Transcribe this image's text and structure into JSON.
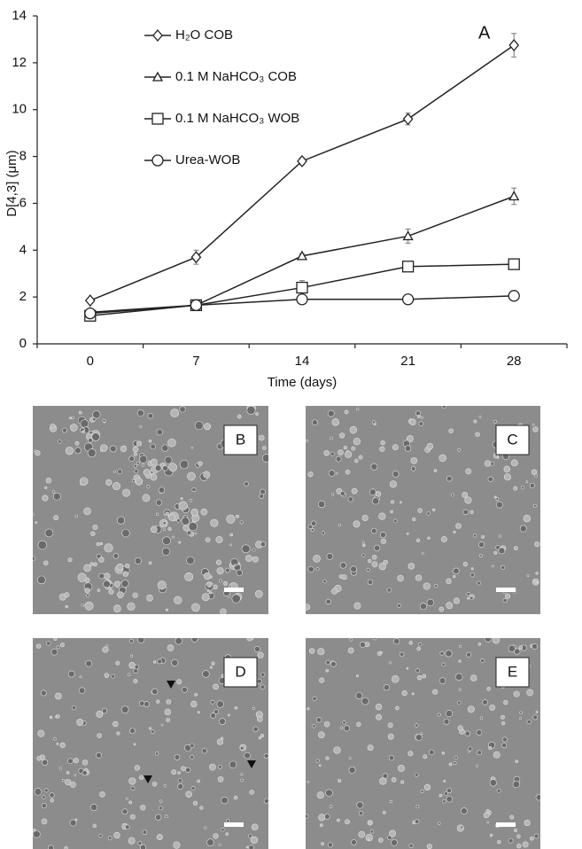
{
  "chart_data": {
    "type": "line",
    "y_label": "D[4,3] (μm)",
    "x_label": "Time (days)",
    "annotation": "A",
    "categories": [
      "0",
      "7",
      "14",
      "21",
      "28"
    ],
    "ylim": [
      0,
      14
    ],
    "yticks": [
      0,
      2,
      4,
      6,
      8,
      10,
      12,
      14
    ],
    "series": [
      {
        "name": "H₂O COB",
        "color": "#222222",
        "marker": "diamond",
        "values": [
          1.85,
          3.7,
          7.8,
          9.6,
          12.75
        ],
        "errors": [
          0.1,
          0.3,
          0.15,
          0.25,
          0.5
        ]
      },
      {
        "name": "0.1 M NaHCO₃ COB",
        "color": "#222222",
        "marker": "triangle",
        "values": [
          1.35,
          1.65,
          3.75,
          4.6,
          6.3
        ],
        "errors": [
          0.1,
          0.1,
          0.1,
          0.3,
          0.35
        ]
      },
      {
        "name": "0.1 M NaHCO₃ WOB",
        "color": "#222222",
        "marker": "square",
        "values": [
          1.2,
          1.65,
          2.4,
          3.3,
          3.4
        ],
        "errors": [
          0.1,
          0.1,
          0.3,
          0.15,
          0.1
        ]
      },
      {
        "name": "Urea-WOB",
        "color": "#222222",
        "marker": "circle",
        "values": [
          1.3,
          1.65,
          1.9,
          1.9,
          2.05
        ],
        "errors": [
          0.1,
          0.1,
          0.1,
          0.1,
          0.1
        ]
      }
    ]
  },
  "panels": [
    "B",
    "C",
    "D",
    "E"
  ]
}
